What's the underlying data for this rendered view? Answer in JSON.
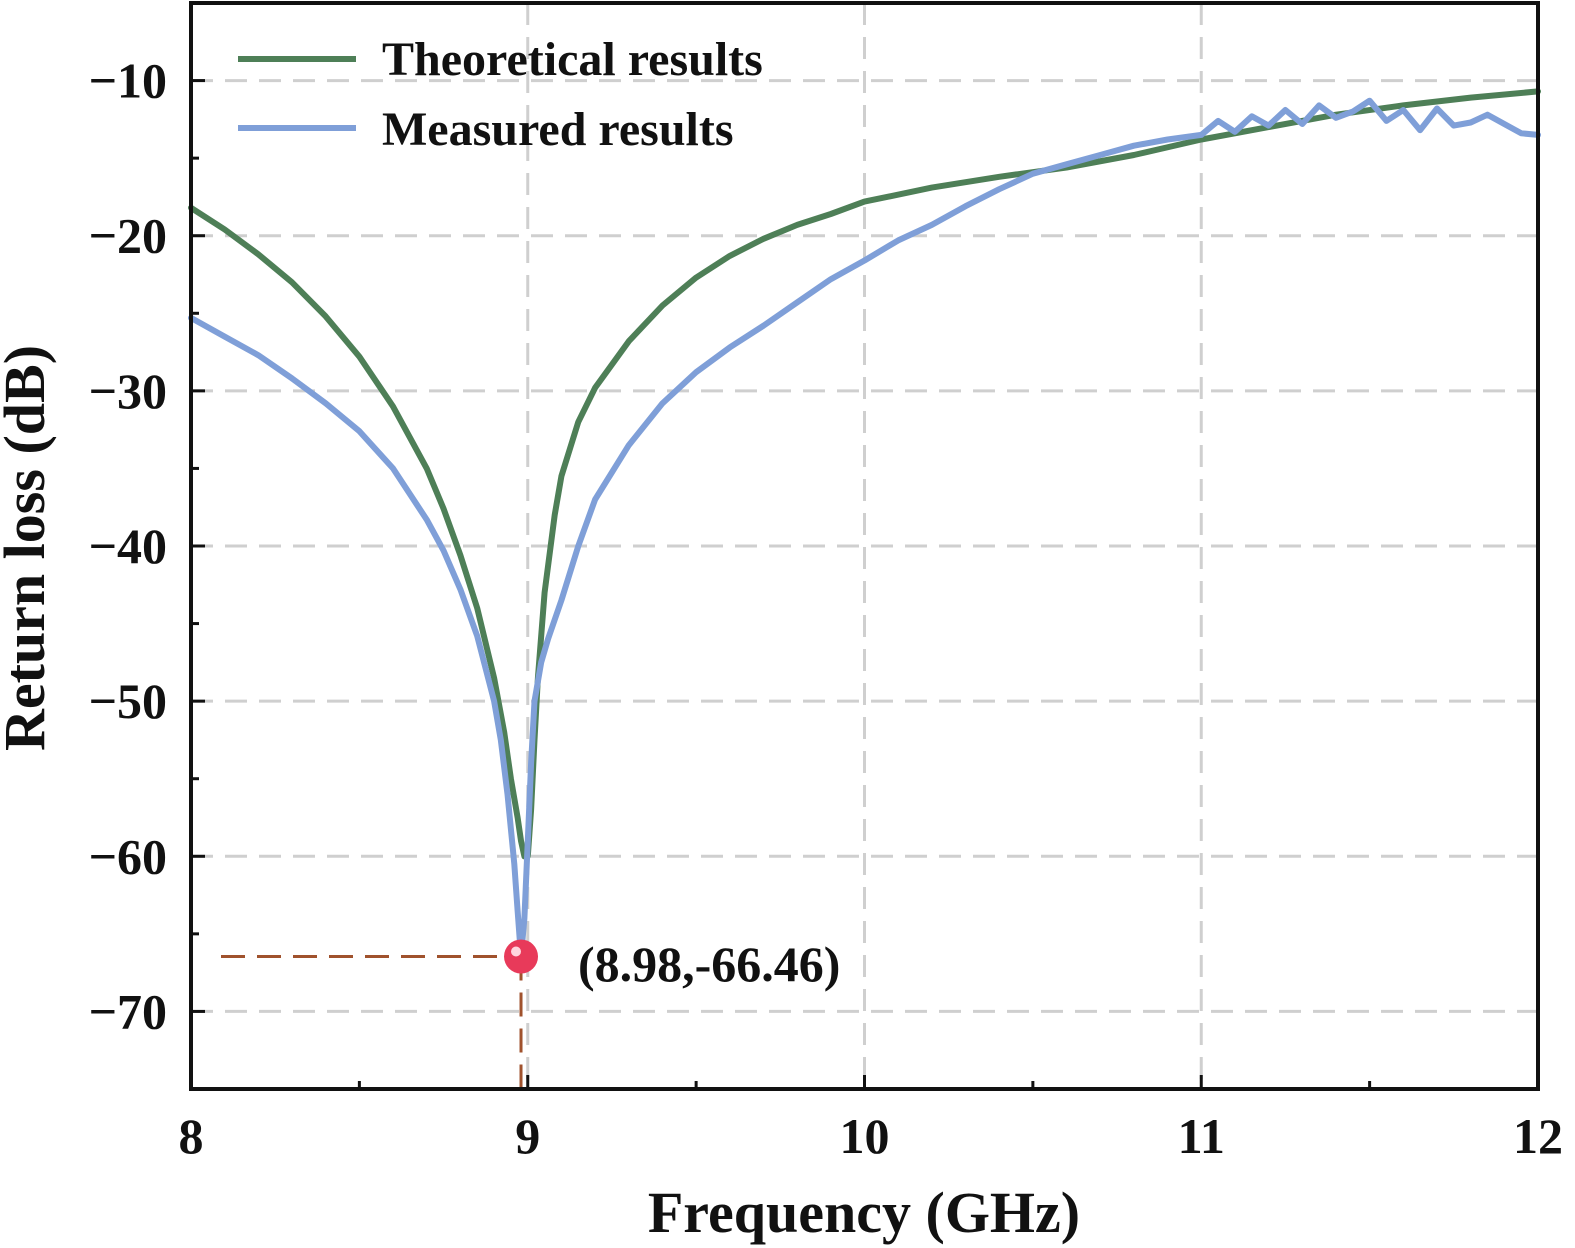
{
  "chart_data": {
    "type": "line",
    "title": "",
    "xlabel": "Frequency (GHz)",
    "ylabel": "Return loss (dB)",
    "xlim": [
      8,
      12
    ],
    "ylim": [
      -75,
      -5
    ],
    "x_ticks": [
      8,
      9,
      10,
      11,
      12
    ],
    "x_tick_labels": [
      "8",
      "9",
      "10",
      "11",
      "12"
    ],
    "y_ticks": [
      -10,
      -20,
      -30,
      -40,
      -50,
      -60,
      -70
    ],
    "y_tick_labels": [
      "−10",
      "−20",
      "−30",
      "−40",
      "−50",
      "−60",
      "−70"
    ],
    "grid": true,
    "legend_position": "top-left",
    "colors": {
      "theoretical": "#4e7f57",
      "measured": "#7f9fd8",
      "marker": "#e83a5a",
      "guide": "#a0522d",
      "grid": "#cfcfcf"
    },
    "series": [
      {
        "name": "Theoretical results",
        "x": [
          8.0,
          8.1,
          8.2,
          8.3,
          8.4,
          8.5,
          8.6,
          8.7,
          8.75,
          8.8,
          8.85,
          8.9,
          8.93,
          8.95,
          8.97,
          8.98,
          8.99,
          9.0,
          9.01,
          9.02,
          9.03,
          9.05,
          9.08,
          9.1,
          9.15,
          9.2,
          9.3,
          9.4,
          9.5,
          9.6,
          9.7,
          9.8,
          9.9,
          10.0,
          10.2,
          10.4,
          10.6,
          10.8,
          11.0,
          11.2,
          11.4,
          11.6,
          11.8,
          12.0
        ],
        "y": [
          -18.2,
          -19.6,
          -21.2,
          -23.0,
          -25.2,
          -27.8,
          -31.0,
          -35.0,
          -37.6,
          -40.6,
          -44.0,
          -48.5,
          -52.0,
          -55.0,
          -57.5,
          -59.0,
          -60.0,
          -60.0,
          -57.0,
          -52.5,
          -48.5,
          -43.0,
          -38.0,
          -35.5,
          -32.0,
          -29.8,
          -26.8,
          -24.5,
          -22.7,
          -21.3,
          -20.2,
          -19.3,
          -18.6,
          -17.8,
          -16.9,
          -16.2,
          -15.6,
          -14.8,
          -13.8,
          -13.0,
          -12.2,
          -11.6,
          -11.1,
          -10.7
        ]
      },
      {
        "name": "Measured results",
        "x": [
          8.0,
          8.1,
          8.2,
          8.3,
          8.4,
          8.5,
          8.6,
          8.7,
          8.75,
          8.8,
          8.85,
          8.9,
          8.92,
          8.94,
          8.96,
          8.97,
          8.98,
          8.99,
          9.0,
          9.01,
          9.02,
          9.04,
          9.06,
          9.1,
          9.15,
          9.2,
          9.3,
          9.4,
          9.5,
          9.6,
          9.7,
          9.8,
          9.9,
          10.0,
          10.1,
          10.2,
          10.3,
          10.4,
          10.5,
          10.6,
          10.7,
          10.8,
          10.9,
          11.0,
          11.05,
          11.1,
          11.15,
          11.2,
          11.25,
          11.3,
          11.35,
          11.4,
          11.45,
          11.5,
          11.55,
          11.6,
          11.65,
          11.7,
          11.75,
          11.8,
          11.85,
          11.9,
          11.95,
          12.0
        ],
        "y": [
          -25.3,
          -26.5,
          -27.7,
          -29.2,
          -30.8,
          -32.6,
          -35.0,
          -38.3,
          -40.3,
          -42.8,
          -45.8,
          -50.0,
          -52.5,
          -56.0,
          -60.5,
          -63.5,
          -66.46,
          -64.0,
          -59.0,
          -54.0,
          -50.0,
          -47.5,
          -46.0,
          -43.5,
          -40.0,
          -37.0,
          -33.5,
          -30.8,
          -28.8,
          -27.2,
          -25.8,
          -24.3,
          -22.8,
          -21.6,
          -20.3,
          -19.3,
          -18.1,
          -17.0,
          -16.0,
          -15.4,
          -14.8,
          -14.2,
          -13.8,
          -13.5,
          -12.6,
          -13.3,
          -12.3,
          -12.9,
          -11.9,
          -12.8,
          -11.6,
          -12.4,
          -12.0,
          -11.3,
          -12.6,
          -11.9,
          -13.2,
          -11.8,
          -12.9,
          -12.7,
          -12.2,
          -12.8,
          -13.4,
          -13.5
        ]
      }
    ],
    "annotation": {
      "label": "(8.98,-66.46)",
      "x": 8.98,
      "y": -66.46
    }
  }
}
